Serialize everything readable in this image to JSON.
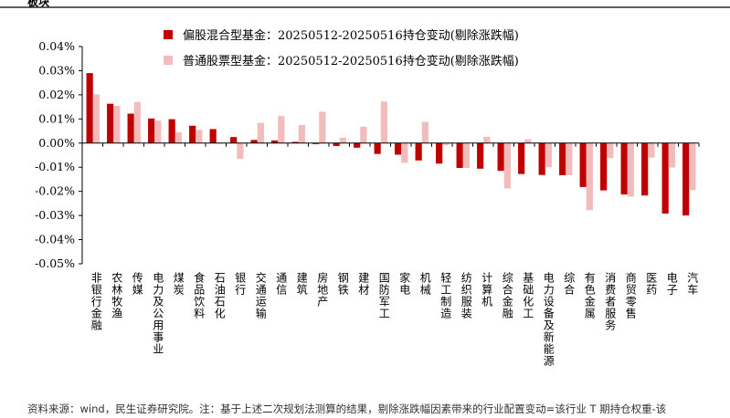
{
  "header": {
    "label": "板块"
  },
  "source_note": "资料来源：wind，民生证券研究院。注：基于上述二次规划法测算的结果，剔除涨跌幅因素带来的行业配置变动=该行业 T 期持仓权重-该",
  "chart_data": {
    "type": "bar",
    "categories": [
      "非银行金融",
      "农林牧渔",
      "传媒",
      "电力及公用事业",
      "煤炭",
      "食品饮料",
      "石油石化",
      "银行",
      "交通运输",
      "通信",
      "建筑",
      "房地产",
      "钢铁",
      "建材",
      "国防军工",
      "家电",
      "机械",
      "轻工制造",
      "纺织服装",
      "计算机",
      "综合金融",
      "基础化工",
      "电力设备及新能源",
      "综合",
      "有色金属",
      "消费者服务",
      "商贸零售",
      "医药",
      "电子",
      "汽车"
    ],
    "series": [
      {
        "name": "偏股混合型基金：20250512-20250516持仓变动(剔除涨跌幅)",
        "color": "#C00000",
        "values": [
          0.029,
          0.0163,
          0.0122,
          0.0102,
          0.0099,
          0.0072,
          0.0058,
          0.0025,
          0.0013,
          0.0011,
          0.0005,
          -0.0004,
          -0.0012,
          -0.0019,
          -0.0045,
          -0.0048,
          -0.0072,
          -0.0085,
          -0.0103,
          -0.0106,
          -0.0115,
          -0.0128,
          -0.0132,
          -0.0133,
          -0.0182,
          -0.0196,
          -0.0213,
          -0.0217,
          -0.0292,
          -0.03
        ]
      },
      {
        "name": "普通股票型基金：20250512-20250516持仓变动(剔除涨跌幅)",
        "color": "#F2BCBC",
        "values": [
          0.0202,
          0.0154,
          0.017,
          0.0093,
          0.0045,
          0.0055,
          0.0,
          -0.0065,
          0.0084,
          0.0112,
          0.0075,
          0.013,
          0.0022,
          0.0068,
          0.0172,
          -0.0082,
          0.0088,
          -0.0008,
          -0.0103,
          0.0026,
          -0.0188,
          0.0016,
          -0.01,
          -0.0133,
          -0.0278,
          -0.0062,
          -0.0222,
          -0.006,
          -0.0101,
          -0.0195
        ]
      }
    ],
    "yticks": [
      "0.04%",
      "0.03%",
      "0.02%",
      "0.01%",
      "0.00%",
      "-0.01%",
      "-0.02%",
      "-0.03%",
      "-0.04%",
      "-0.05%"
    ],
    "ylim": [
      -0.05,
      0.04
    ],
    "legend": "top-left"
  }
}
